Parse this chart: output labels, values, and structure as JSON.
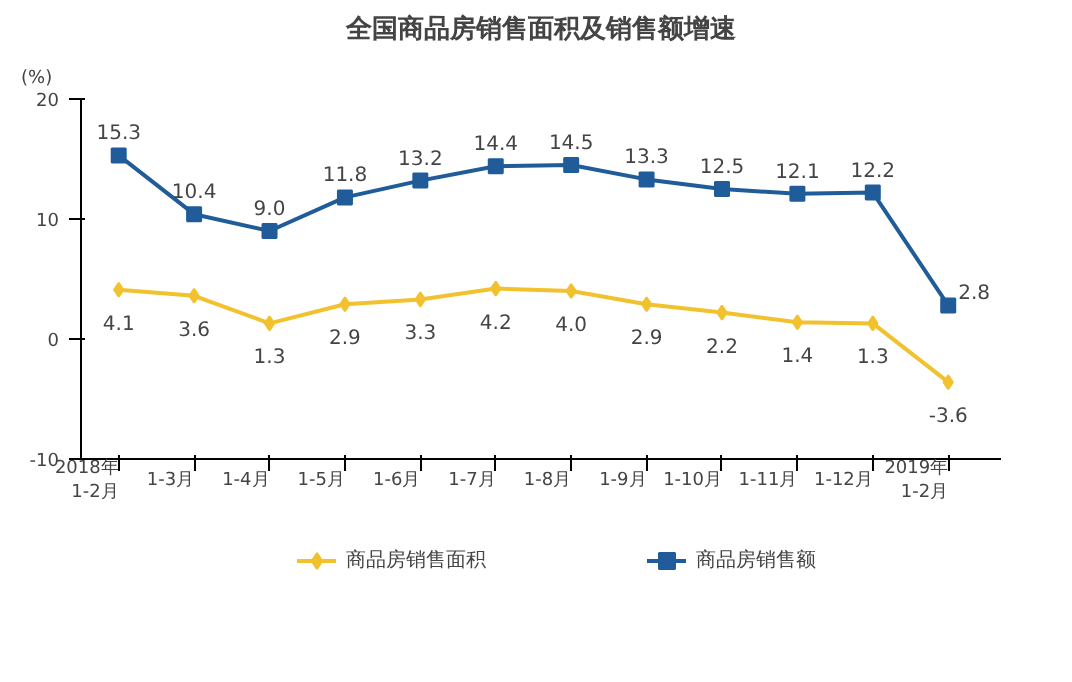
{
  "chart_data": {
    "type": "line",
    "title": "全国商品房销售面积及销售额增速",
    "ylabel": "(%)",
    "categories": [
      "2018年\n1-2月",
      "1-3月",
      "1-4月",
      "1-5月",
      "1-6月",
      "1-7月",
      "1-8月",
      "1-9月",
      "1-10月",
      "1-11月",
      "1-12月",
      "2019年\n1-2月"
    ],
    "series": [
      {
        "name": "商品房销售面积",
        "color": "#f2c12e",
        "marker": "diamond",
        "values": [
          4.1,
          3.6,
          1.3,
          2.9,
          3.3,
          4.2,
          4.0,
          2.9,
          2.2,
          1.4,
          1.3,
          -3.6
        ],
        "value_labels": [
          "4.1",
          "3.6",
          "1.3",
          "2.9",
          "3.3",
          "4.2",
          "4.0",
          "2.9",
          "2.2",
          "1.4",
          "1.3",
          "-3.6"
        ]
      },
      {
        "name": "商品房销售额",
        "color": "#1f5c99",
        "marker": "square",
        "values": [
          15.3,
          10.4,
          9.0,
          11.8,
          13.2,
          14.4,
          14.5,
          13.3,
          12.5,
          12.1,
          12.2,
          2.8
        ],
        "value_labels": [
          "15.3",
          "10.4",
          "9.0",
          "11.8",
          "13.2",
          "14.4",
          "14.5",
          "13.3",
          "12.5",
          "12.1",
          "12.2",
          "2.8"
        ]
      }
    ],
    "ylim": [
      -10,
      20
    ],
    "yticks": [
      -10,
      0,
      10,
      20
    ],
    "grid": false,
    "legend": "bottom",
    "data_labels": true,
    "line_style": "solid"
  }
}
